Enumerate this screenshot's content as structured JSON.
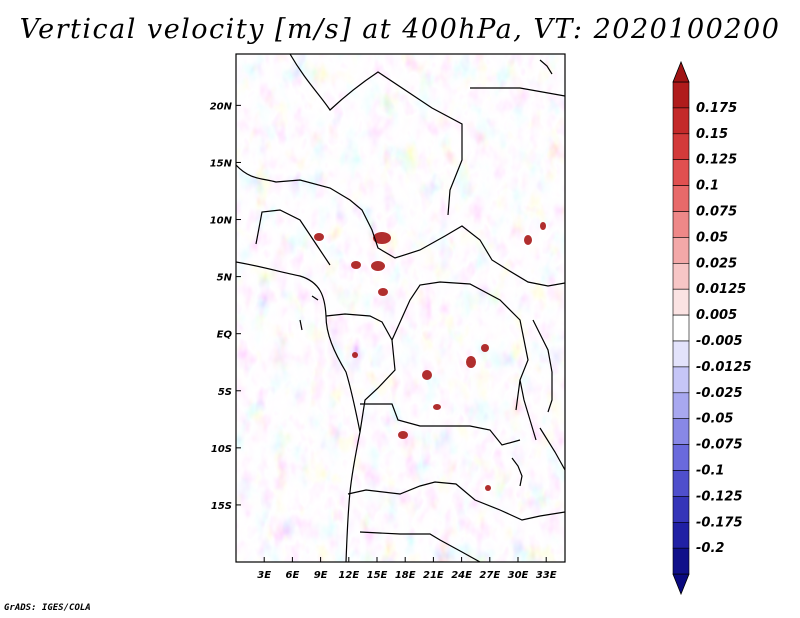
{
  "title": "Vertical velocity [m/s] at 400hPa, VT: 2020100200",
  "credit": "GrADS: IGES/COLA",
  "lat_labels": [
    "20N",
    "15N",
    "10N",
    "5N",
    "EQ",
    "5S",
    "10S",
    "15S"
  ],
  "lat_values": [
    20,
    15,
    10,
    5,
    0,
    -5,
    -10,
    -15
  ],
  "lon_labels": [
    "3E",
    "6E",
    "9E",
    "12E",
    "15E",
    "18E",
    "21E",
    "24E",
    "27E",
    "30E",
    "33E"
  ],
  "lon_values": [
    3,
    6,
    9,
    12,
    15,
    18,
    21,
    24,
    27,
    30,
    33
  ],
  "lon_range": [
    0,
    35
  ],
  "lat_range": [
    -20,
    24.5
  ],
  "colorbar": {
    "labels": [
      "0.175",
      "0.15",
      "0.125",
      "0.1",
      "0.075",
      "0.05",
      "0.025",
      "0.0125",
      "0.005",
      "-0.005",
      "-0.0125",
      "-0.025",
      "-0.05",
      "-0.075",
      "-0.1",
      "-0.125",
      "-0.175",
      "-0.2"
    ],
    "colors": [
      "#b01c1c",
      "#c42a2a",
      "#d33a3a",
      "#e05050",
      "#e86a6a",
      "#ee8888",
      "#f3a8a8",
      "#f7c6c6",
      "#fbe3e3",
      "#ffffff",
      "#e3e3fb",
      "#c6c6f7",
      "#a8a8f0",
      "#8888e6",
      "#6a6adc",
      "#4f4fcc",
      "#3535b8",
      "#2020a4",
      "#10108a"
    ],
    "top_triangle_color": "#a01414",
    "bottom_triangle_color": "#0a0a80"
  }
}
